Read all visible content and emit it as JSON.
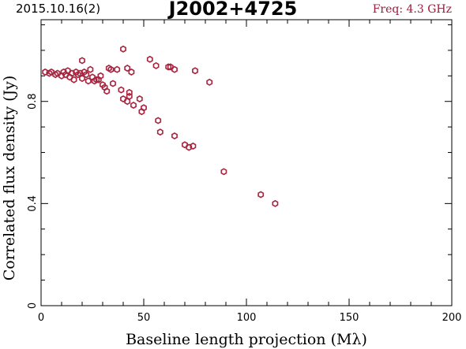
{
  "header": {
    "date_label": "2015.10.16(2)",
    "source_name": "J2002+4725",
    "freq_label": "Freq: 4.3 GHz"
  },
  "colors": {
    "points": "#a8243f",
    "header_freq": "#9b1b3a",
    "axes": "#000000"
  },
  "chart_data": {
    "type": "scatter",
    "xlabel": "Baseline length projection (Mλ)",
    "ylabel": "Correlated flux density (Jy)",
    "xlim": [
      0,
      200
    ],
    "ylim": [
      0,
      1.12
    ],
    "x_ticks": [
      0,
      50,
      100,
      150,
      200
    ],
    "y_ticks": [
      0,
      0.4,
      0.8
    ],
    "x_tick_labels": [
      "0",
      "50",
      "100",
      "150",
      "200"
    ],
    "y_tick_labels": [
      "0",
      "0.4",
      "0.8"
    ],
    "grid": false,
    "marker": "open-hexagon",
    "points": [
      [
        2,
        0.915
      ],
      [
        4,
        0.91
      ],
      [
        5,
        0.915
      ],
      [
        7,
        0.905
      ],
      [
        8,
        0.91
      ],
      [
        10,
        0.9
      ],
      [
        11,
        0.915
      ],
      [
        12,
        0.905
      ],
      [
        13,
        0.92
      ],
      [
        14,
        0.895
      ],
      [
        15,
        0.91
      ],
      [
        16,
        0.885
      ],
      [
        17,
        0.915
      ],
      [
        18,
        0.905
      ],
      [
        19,
        0.91
      ],
      [
        20,
        0.89
      ],
      [
        21,
        0.915
      ],
      [
        20,
        0.96
      ],
      [
        22,
        0.905
      ],
      [
        23,
        0.88
      ],
      [
        24,
        0.925
      ],
      [
        25,
        0.895
      ],
      [
        26,
        0.88
      ],
      [
        27,
        0.885
      ],
      [
        28,
        0.885
      ],
      [
        29,
        0.9
      ],
      [
        30,
        0.865
      ],
      [
        31,
        0.855
      ],
      [
        32,
        0.84
      ],
      [
        33,
        0.93
      ],
      [
        34,
        0.925
      ],
      [
        35,
        0.87
      ],
      [
        37,
        0.925
      ],
      [
        39,
        0.845
      ],
      [
        40,
        0.81
      ],
      [
        40,
        1.005
      ],
      [
        42,
        0.8
      ],
      [
        42,
        0.93
      ],
      [
        43,
        0.835
      ],
      [
        43,
        0.82
      ],
      [
        44,
        0.915
      ],
      [
        45,
        0.785
      ],
      [
        48,
        0.81
      ],
      [
        49,
        0.76
      ],
      [
        50,
        0.775
      ],
      [
        53,
        0.965
      ],
      [
        56,
        0.94
      ],
      [
        57,
        0.725
      ],
      [
        58,
        0.68
      ],
      [
        62,
        0.935
      ],
      [
        63,
        0.935
      ],
      [
        65,
        0.925
      ],
      [
        65,
        0.665
      ],
      [
        70,
        0.63
      ],
      [
        72,
        0.62
      ],
      [
        74,
        0.625
      ],
      [
        75,
        0.92
      ],
      [
        82,
        0.875
      ],
      [
        89,
        0.525
      ],
      [
        107,
        0.435
      ],
      [
        114,
        0.4
      ]
    ]
  }
}
